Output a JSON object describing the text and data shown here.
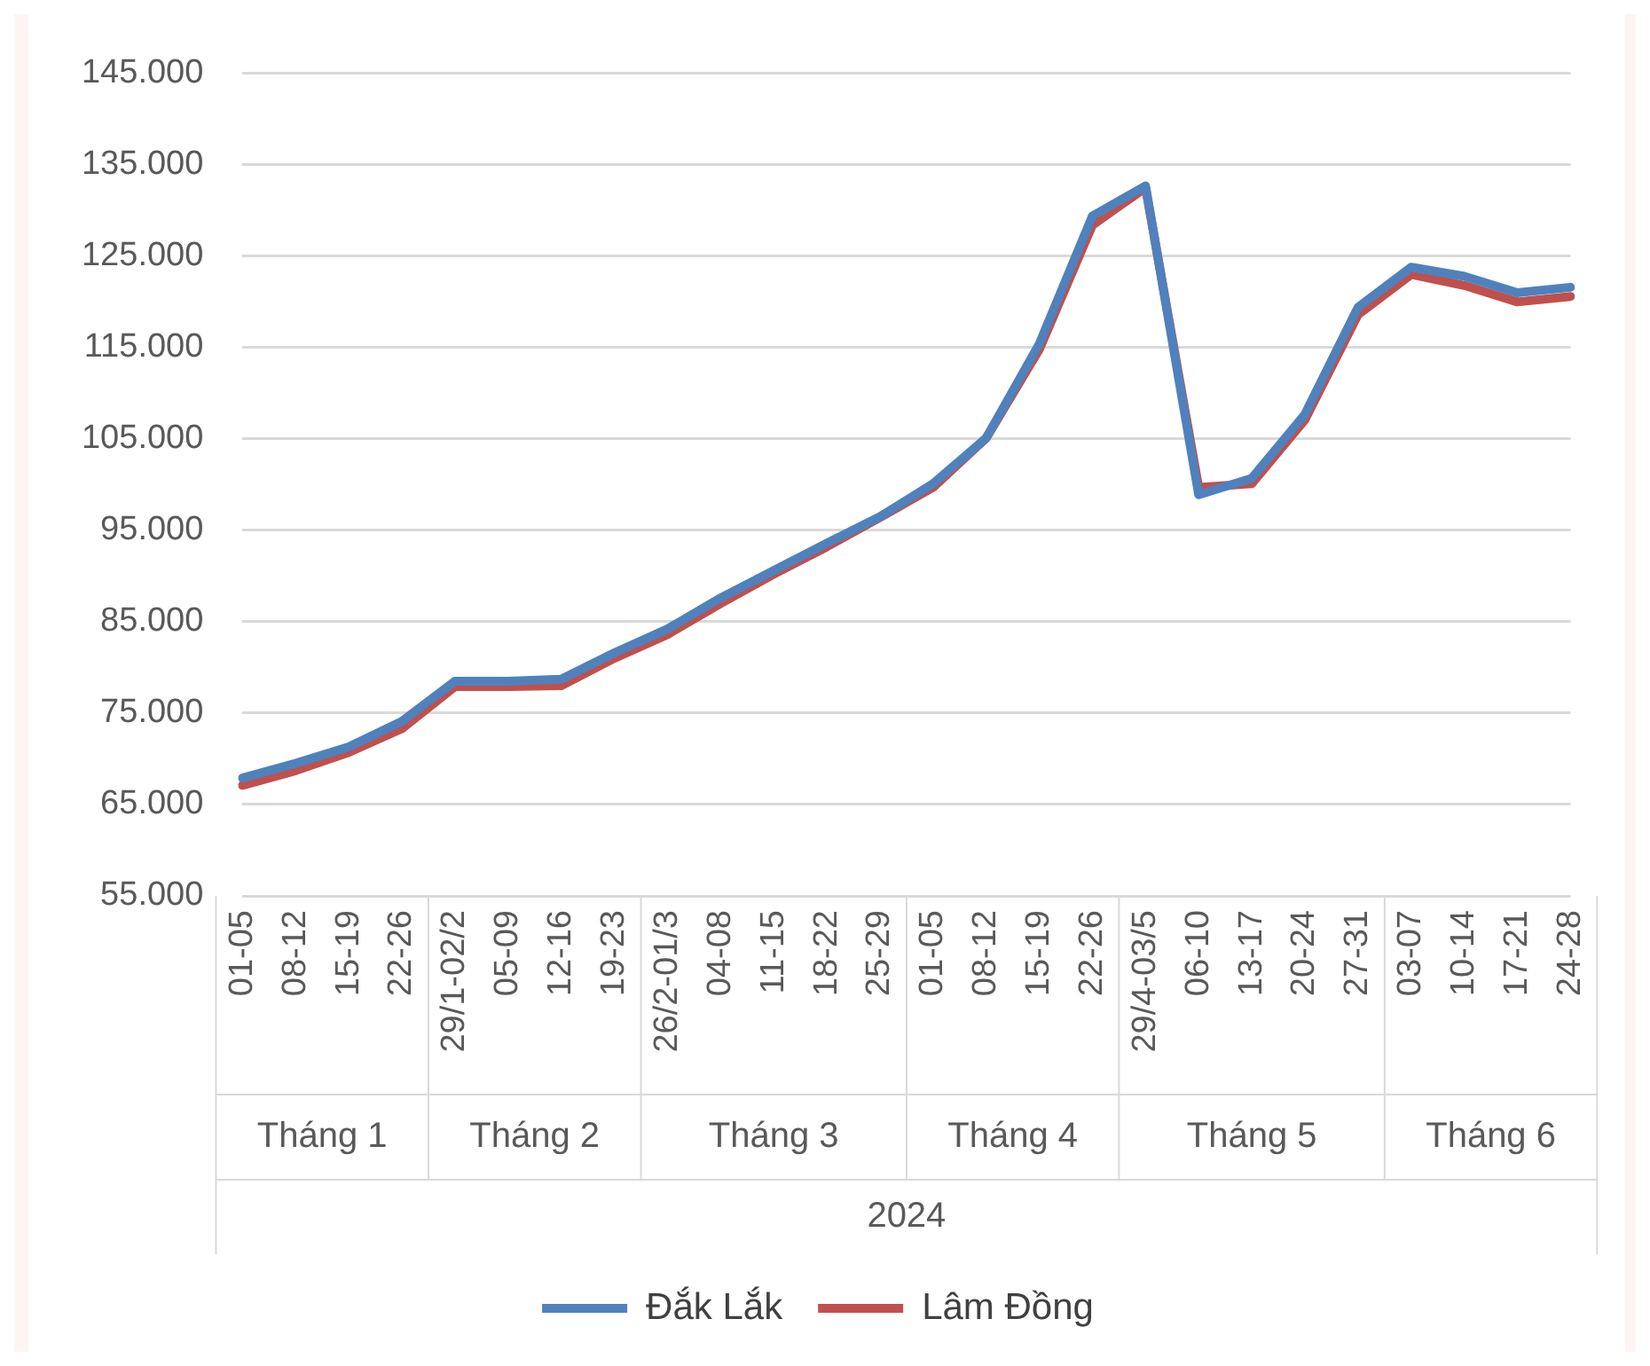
{
  "chart_data": {
    "type": "line",
    "xlabel": "2024",
    "categories": [
      "01-05",
      "08-12",
      "15-19",
      "22-26",
      "29/1-02/2",
      "05-09",
      "12-16",
      "19-23",
      "26/2-01/3",
      "04-08",
      "11-15",
      "18-22",
      "25-29",
      "01-05",
      "08-12",
      "15-19",
      "22-26",
      "29/4-03/5",
      "06-10",
      "13-17",
      "20-24",
      "27-31",
      "03-07",
      "10-14",
      "17-21",
      "24-28"
    ],
    "series": [
      {
        "name": "Đắk Lắk",
        "color": "#4f81bd",
        "values": [
          67900,
          69500,
          71300,
          74100,
          78500,
          78500,
          78700,
          81600,
          84200,
          87600,
          90600,
          93600,
          96500,
          100100,
          105100,
          115400,
          129400,
          132700,
          98900,
          100700,
          107700,
          119400,
          123800,
          122800,
          121000,
          121600
        ]
      },
      {
        "name": "Lâm Đồng",
        "color": "#c0504d",
        "values": [
          67100,
          68700,
          70700,
          73300,
          77900,
          77900,
          78000,
          81000,
          83600,
          87000,
          90200,
          93200,
          96400,
          99700,
          105100,
          114800,
          128400,
          132500,
          99700,
          100100,
          107100,
          118600,
          123000,
          121800,
          120000,
          120600
        ]
      }
    ],
    "ylim": [
      55000,
      145000
    ],
    "yticks": [
      {
        "value": 55000,
        "label": "55.000"
      },
      {
        "value": 65000,
        "label": "65.000"
      },
      {
        "value": 75000,
        "label": "75.000"
      },
      {
        "value": 85000,
        "label": "85.000"
      },
      {
        "value": 95000,
        "label": "95.000"
      },
      {
        "value": 105000,
        "label": "105.000"
      },
      {
        "value": 115000,
        "label": "115.000"
      },
      {
        "value": 125000,
        "label": "125.000"
      },
      {
        "value": 135000,
        "label": "135.000"
      },
      {
        "value": 145000,
        "label": "145.000"
      }
    ],
    "grid": "y",
    "legend": "bottom",
    "marker": "none",
    "line_style": "solid",
    "annotations": [
      "Tháng 1",
      "Tháng 2",
      "Tháng 3",
      "Tháng 4",
      "Tháng 5",
      "Tháng 6"
    ]
  }
}
